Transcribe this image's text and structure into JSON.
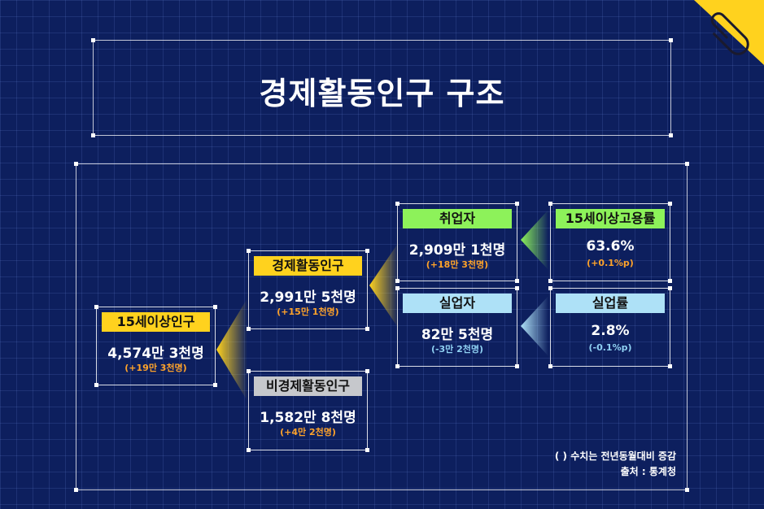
{
  "title": "경제활동인구 구조",
  "nodes": {
    "pop15": {
      "label": "15세이상인구",
      "value": "4,574만 3천명",
      "change": "(+19만 3천명)"
    },
    "active": {
      "label": "경제활동인구",
      "value": "2,991만 5천명",
      "change": "(+15만 1천명)"
    },
    "inactive": {
      "label": "비경제활동인구",
      "value": "1,582만 8천명",
      "change": "(+4만 2천명)"
    },
    "employed": {
      "label": "취업자",
      "value": "2,909만 1천명",
      "change": "(+18만 3천명)"
    },
    "unemployed": {
      "label": "실업자",
      "value": "82만 5천명",
      "change": "(-3만 2천명)"
    },
    "employment_rate": {
      "label": "15세이상고용률",
      "value": "63.6%",
      "change": "(+0.1%p)"
    },
    "unemployment_rate": {
      "label": "실업률",
      "value": "2.8%",
      "change": "(-0.1%p)"
    }
  },
  "notes": {
    "line1": "( ) 수치는 전년동월대비 증감",
    "line2": "출처 : 통계청"
  },
  "colors": {
    "background": "#0d1f5e",
    "yellow": "#ffd21e",
    "green": "#8df25a",
    "light_blue": "#aee1f7",
    "gray": "#c6c8cc",
    "orange_text": "#ffa32a",
    "blue_text": "#8fd0f2"
  },
  "icons": {
    "corner": "paperclip-icon"
  }
}
